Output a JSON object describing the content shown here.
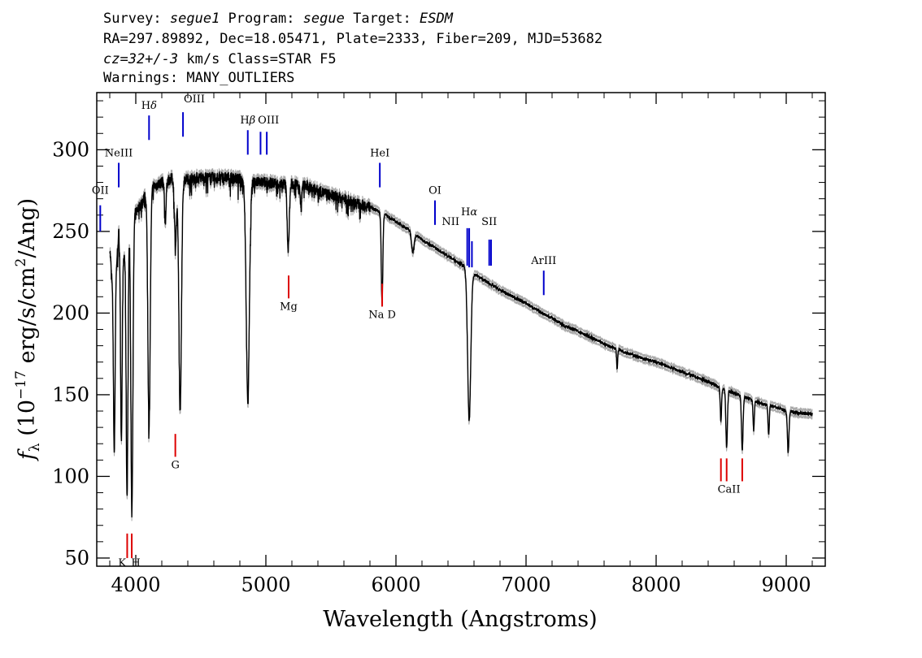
{
  "header": {
    "line1": [
      {
        "text": "Survey: ",
        "italic": false
      },
      {
        "text": "segue1",
        "italic": true
      },
      {
        "text": " Program: ",
        "italic": false
      },
      {
        "text": "segue",
        "italic": true
      },
      {
        "text": " Target: ",
        "italic": false
      },
      {
        "text": "ESDM",
        "italic": true
      }
    ],
    "line2": "RA=297.89892, Dec=18.05471, Plate=2333, Fiber=209, MJD=53682",
    "line3": [
      {
        "text": "cz=32+/-3",
        "italic": true
      },
      {
        "text": " km/s Class=STAR F5",
        "italic": false
      }
    ],
    "line4": "Warnings: MANY_OUTLIERS"
  },
  "colors": {
    "emission": "#0000cc",
    "absorption": "#dd0000",
    "spectrum": "#000000",
    "error": "#aaaaaa"
  },
  "chart_data": {
    "type": "line",
    "xlabel": "Wavelength (Angstroms)",
    "ylabel_parts": {
      "f": "f",
      "sub": "λ",
      "open": " (10",
      "exp1": "−17",
      "mid": " erg/s/cm",
      "exp2": "2",
      "close": "/Ang)"
    },
    "xlim": [
      3700,
      9300
    ],
    "ylim": [
      45,
      335
    ],
    "xticks": [
      4000,
      5000,
      6000,
      7000,
      8000,
      9000
    ],
    "yticks": [
      50,
      100,
      150,
      200,
      250,
      300
    ],
    "continuum": [
      [
        3800,
        240
      ],
      [
        3830,
        205
      ],
      [
        3870,
        250
      ],
      [
        3900,
        230
      ],
      [
        3950,
        258
      ],
      [
        4000,
        262
      ],
      [
        4050,
        268
      ],
      [
        4100,
        276
      ],
      [
        4200,
        280
      ],
      [
        4300,
        283
      ],
      [
        4400,
        282
      ],
      [
        4500,
        283
      ],
      [
        4600,
        283
      ],
      [
        4700,
        283
      ],
      [
        4800,
        282
      ],
      [
        4900,
        280
      ],
      [
        5000,
        280
      ],
      [
        5100,
        279
      ],
      [
        5200,
        279
      ],
      [
        5300,
        278
      ],
      [
        5400,
        275
      ],
      [
        5500,
        272
      ],
      [
        5600,
        270
      ],
      [
        5700,
        267
      ],
      [
        5800,
        265
      ],
      [
        5900,
        261
      ],
      [
        6000,
        256
      ],
      [
        6100,
        251
      ],
      [
        6200,
        245
      ],
      [
        6300,
        240
      ],
      [
        6400,
        235
      ],
      [
        6500,
        230
      ],
      [
        6600,
        224
      ],
      [
        6700,
        219
      ],
      [
        6800,
        214
      ],
      [
        6900,
        210
      ],
      [
        7000,
        206
      ],
      [
        7100,
        201
      ],
      [
        7200,
        197
      ],
      [
        7300,
        192
      ],
      [
        7400,
        189
      ],
      [
        7500,
        185
      ],
      [
        7600,
        181
      ],
      [
        7700,
        178
      ],
      [
        7800,
        175
      ],
      [
        7900,
        172
      ],
      [
        8000,
        170
      ],
      [
        8100,
        167
      ],
      [
        8200,
        164
      ],
      [
        8300,
        161
      ],
      [
        8400,
        158
      ],
      [
        8500,
        154
      ],
      [
        8600,
        151
      ],
      [
        8700,
        148
      ],
      [
        8800,
        145
      ],
      [
        8900,
        143
      ],
      [
        9000,
        140
      ],
      [
        9100,
        139
      ],
      [
        9200,
        138
      ]
    ],
    "absorption_features": [
      {
        "x": 3835,
        "depth": 95,
        "width": 6
      },
      {
        "x": 3889,
        "depth": 115,
        "width": 6
      },
      {
        "x": 3933,
        "depth": 160,
        "width": 7
      },
      {
        "x": 3970,
        "depth": 180,
        "width": 8
      },
      {
        "x": 4102,
        "depth": 145,
        "width": 9
      },
      {
        "x": 4227,
        "depth": 25,
        "width": 6
      },
      {
        "x": 4305,
        "depth": 40,
        "width": 8
      },
      {
        "x": 4341,
        "depth": 140,
        "width": 10
      },
      {
        "x": 4861,
        "depth": 135,
        "width": 12
      },
      {
        "x": 5172,
        "depth": 40,
        "width": 8
      },
      {
        "x": 5270,
        "depth": 15,
        "width": 5
      },
      {
        "x": 5893,
        "depth": 55,
        "width": 6
      },
      {
        "x": 6130,
        "depth": 12,
        "width": 10
      },
      {
        "x": 6563,
        "depth": 92,
        "width": 12
      },
      {
        "x": 7700,
        "depth": 12,
        "width": 4
      },
      {
        "x": 8498,
        "depth": 20,
        "width": 5
      },
      {
        "x": 8542,
        "depth": 35,
        "width": 6
      },
      {
        "x": 8662,
        "depth": 33,
        "width": 6
      },
      {
        "x": 8750,
        "depth": 18,
        "width": 5
      },
      {
        "x": 8865,
        "depth": 18,
        "width": 5
      },
      {
        "x": 9015,
        "depth": 25,
        "width": 6
      }
    ],
    "line_markers": [
      {
        "label": "OII",
        "sup": "",
        "x": 3727,
        "y1": 266,
        "y2": 250,
        "lx": 3727,
        "ly": 273,
        "kind": "emission"
      },
      {
        "label": "NeIII",
        "sup": "",
        "x": 3869,
        "y1": 292,
        "y2": 277,
        "lx": 3869,
        "ly": 296,
        "kind": "emission"
      },
      {
        "label": "H",
        "sup": "δ",
        "x": 4102,
        "y1": 321,
        "y2": 306,
        "lx": 4102,
        "ly": 325,
        "kind": "emission"
      },
      {
        "label": "OIII",
        "sup": "",
        "x": 4363,
        "y1": 323,
        "y2": 308,
        "lx": 4450,
        "ly": 329,
        "kind": "emission"
      },
      {
        "label": "H",
        "sup": "β",
        "x": 4861,
        "y1": 312,
        "y2": 297,
        "lx": 4861,
        "ly": 316,
        "kind": "emission"
      },
      {
        "label": "OIII",
        "sup": "",
        "x": 4959,
        "y1": 311,
        "y2": 297,
        "lx": 5020,
        "ly": 316,
        "kind": "emission"
      },
      {
        "label": "",
        "sup": "",
        "x": 5007,
        "y1": 311,
        "y2": 297,
        "lx": 5007,
        "ly": 0,
        "kind": "emission"
      },
      {
        "label": "HeI",
        "sup": "",
        "x": 5876,
        "y1": 292,
        "y2": 277,
        "lx": 5876,
        "ly": 296,
        "kind": "emission"
      },
      {
        "label": "OI",
        "sup": "",
        "x": 6300,
        "y1": 269,
        "y2": 254,
        "lx": 6300,
        "ly": 273,
        "kind": "emission"
      },
      {
        "label": "NII",
        "sup": "",
        "x": 6548,
        "y1": 252,
        "y2": 229,
        "lx": 6420,
        "ly": 254,
        "kind": "emission"
      },
      {
        "label": "H",
        "sup": "α",
        "x": 6563,
        "y1": 252,
        "y2": 228,
        "lx": 6563,
        "ly": 260,
        "kind": "emission"
      },
      {
        "label": "",
        "sup": "",
        "x": 6584,
        "y1": 244,
        "y2": 228,
        "lx": 6584,
        "ly": 0,
        "kind": "emission"
      },
      {
        "label": "SII",
        "sup": "",
        "x": 6717,
        "y1": 245,
        "y2": 229,
        "lx": 6717,
        "ly": 254,
        "kind": "emission"
      },
      {
        "label": "",
        "sup": "",
        "x": 6731,
        "y1": 245,
        "y2": 229,
        "lx": 6731,
        "ly": 0,
        "kind": "emission"
      },
      {
        "label": "ArIII",
        "sup": "",
        "x": 7136,
        "y1": 226,
        "y2": 211,
        "lx": 7136,
        "ly": 230,
        "kind": "emission"
      },
      {
        "label": "K",
        "sup": "",
        "x": 3934,
        "y1": 65,
        "y2": 50,
        "lx": 3895,
        "ly": 45,
        "kind": "absorption"
      },
      {
        "label": "H",
        "sup": "",
        "x": 3969,
        "y1": 65,
        "y2": 50,
        "lx": 4000,
        "ly": 45,
        "kind": "absorption"
      },
      {
        "label": "G",
        "sup": "",
        "x": 4304,
        "y1": 126,
        "y2": 112,
        "lx": 4304,
        "ly": 105,
        "kind": "absorption"
      },
      {
        "label": "Mg",
        "sup": "",
        "x": 5175,
        "y1": 223,
        "y2": 209,
        "lx": 5175,
        "ly": 202,
        "kind": "absorption"
      },
      {
        "label": "Na D",
        "sup": "",
        "x": 5894,
        "y1": 218,
        "y2": 204,
        "lx": 5894,
        "ly": 197,
        "kind": "absorption"
      },
      {
        "label": "CaII",
        "sup": "",
        "x": 8498,
        "y1": 111,
        "y2": 97,
        "lx": 8560,
        "ly": 90,
        "kind": "absorption"
      },
      {
        "label": "",
        "sup": "",
        "x": 8542,
        "y1": 111,
        "y2": 97,
        "lx": 8542,
        "ly": 0,
        "kind": "absorption"
      },
      {
        "label": "",
        "sup": "",
        "x": 8662,
        "y1": 111,
        "y2": 97,
        "lx": 8662,
        "ly": 0,
        "kind": "absorption"
      }
    ]
  }
}
